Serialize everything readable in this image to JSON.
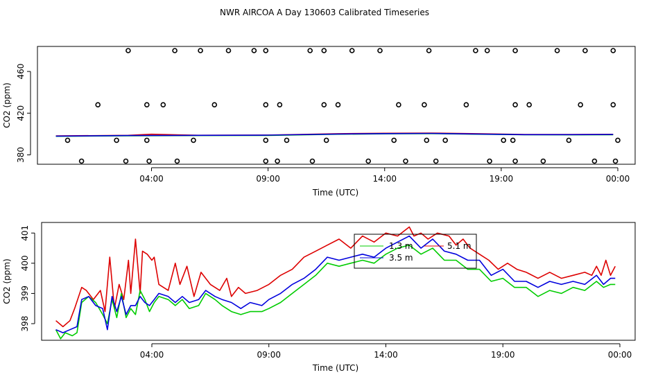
{
  "page_title": "NWR AIRCOA A  Day 130603  Calibrated Timeseries",
  "chart_data": [
    {
      "id": "top",
      "type": "scatter",
      "xlabel": "Time (UTC)",
      "ylabel": "CO2 (ppm)",
      "x_ticks": [
        {
          "t": 4,
          "label": "04:00"
        },
        {
          "t": 9,
          "label": "09:00"
        },
        {
          "t": 14,
          "label": "14:00"
        },
        {
          "t": 19,
          "label": "19:00"
        },
        {
          "t": 24,
          "label": "00:00"
        }
      ],
      "y_ticks": [
        380,
        420,
        460
      ],
      "xlim": [
        -0.9,
        24.9
      ],
      "ylim": [
        371,
        484
      ],
      "calibration_points": {
        "x": [
          3.0,
          6.1,
          5.0,
          7.3,
          8.4,
          8.9,
          10.8,
          11.4,
          12.6,
          13.8,
          15.9,
          17.9,
          18.4,
          19.6,
          21.4,
          22.6,
          23.8,
          1.7,
          3.8,
          4.5,
          6.7,
          8.9,
          9.5,
          11.4,
          12.0,
          14.6,
          15.7,
          17.5,
          19.6,
          20.2,
          22.4,
          23.8,
          1.0,
          2.9,
          3.9,
          5.1,
          8.9,
          9.4,
          10.9,
          13.3,
          14.9,
          16.2,
          18.5,
          19.6,
          20.8,
          23.0,
          23.9,
          0.4,
          2.5,
          3.8,
          5.8,
          8.9,
          9.8,
          11.5,
          14.4,
          15.8,
          16.6,
          19.1,
          19.5,
          21.9,
          24.0
        ],
        "y": [
          480,
          480,
          480,
          480,
          480,
          480,
          480,
          480,
          480,
          480,
          480,
          480,
          480,
          480,
          480,
          480,
          480,
          428,
          428,
          428,
          428,
          428,
          428,
          428,
          428,
          428,
          428,
          428,
          428,
          428,
          428,
          428,
          374,
          374,
          374,
          374,
          374,
          374,
          374,
          374,
          374,
          374,
          374,
          374,
          374,
          374,
          374,
          394,
          394,
          394,
          394,
          394,
          394,
          394,
          394,
          394,
          394,
          394,
          394,
          394,
          394
        ]
      },
      "series": [
        {
          "name": "red",
          "color": "#dd0000",
          "x": [
            -0.1,
            3.0,
            4.0,
            6.0,
            9.0,
            12.0,
            14.0,
            16.0,
            18.0,
            20.0,
            22.0,
            23.8
          ],
          "y": [
            398.2,
            398.7,
            399.8,
            398.8,
            399.0,
            400.3,
            400.7,
            400.9,
            400.3,
            399.5,
            399.5,
            399.7
          ]
        },
        {
          "name": "green",
          "color": "#00cc00",
          "x": [
            -0.1,
            3.0,
            6.0,
            9.0,
            12.0,
            14.0,
            16.0,
            18.0,
            20.0,
            22.0,
            23.8
          ],
          "y": [
            397.8,
            398.3,
            398.5,
            398.6,
            399.8,
            400.2,
            400.4,
            399.8,
            399.3,
            399.2,
            399.3
          ]
        },
        {
          "name": "blue",
          "color": "#0000dd",
          "x": [
            -0.1,
            3.0,
            6.0,
            9.0,
            12.0,
            14.0,
            16.0,
            18.0,
            20.0,
            22.0,
            23.8
          ],
          "y": [
            398.0,
            398.5,
            398.7,
            398.9,
            400.0,
            400.4,
            400.6,
            400.0,
            399.4,
            399.4,
            399.5
          ]
        }
      ]
    },
    {
      "id": "bottom",
      "type": "line",
      "xlabel": "Time (UTC)",
      "ylabel": "CO2 (ppm)",
      "x_ticks": [
        {
          "t": 4,
          "label": "04:00"
        },
        {
          "t": 9,
          "label": "09:00"
        },
        {
          "t": 14,
          "label": "14:00"
        },
        {
          "t": 19,
          "label": "19:00"
        },
        {
          "t": 24,
          "label": "00:00"
        }
      ],
      "y_ticks": [
        398,
        399,
        400,
        401
      ],
      "xlim": [
        -0.9,
        24.9
      ],
      "ylim": [
        397.45,
        401.35
      ],
      "legend": {
        "position": "top-center",
        "entries": [
          {
            "label": "1.3 m",
            "color": "#00cc00"
          },
          {
            "label": "5.1 m",
            "color": "#dd0000"
          },
          {
            "label": "3.5 m",
            "color": "#0000dd"
          }
        ]
      },
      "series": [
        {
          "name": "5.1 m",
          "color": "#dd0000",
          "x": [
            -0.1,
            0.2,
            0.5,
            0.7,
            1.0,
            1.2,
            1.5,
            1.8,
            2.0,
            2.2,
            2.4,
            2.6,
            2.8,
            3.0,
            3.1,
            3.3,
            3.5,
            3.6,
            3.8,
            4.0,
            4.1,
            4.3,
            4.7,
            5.0,
            5.2,
            5.5,
            5.8,
            6.1,
            6.5,
            6.9,
            7.2,
            7.4,
            7.7,
            8.0,
            8.5,
            9.0,
            9.5,
            10.0,
            10.5,
            11.0,
            11.5,
            12.0,
            12.5,
            13.0,
            13.5,
            14.0,
            14.5,
            15.0,
            15.2,
            15.5,
            15.8,
            16.2,
            16.7,
            17.0,
            17.3,
            17.6,
            18.0,
            18.4,
            18.8,
            19.2,
            19.6,
            20.0,
            20.5,
            21.0,
            21.5,
            22.0,
            22.5,
            22.8,
            23.0,
            23.2,
            23.4,
            23.6,
            23.8
          ],
          "y": [
            398.1,
            397.9,
            398.1,
            398.5,
            399.2,
            399.1,
            398.8,
            399.1,
            398.4,
            400.2,
            398.5,
            399.3,
            398.8,
            400.1,
            399.0,
            400.8,
            399.0,
            400.4,
            400.3,
            400.1,
            400.2,
            399.3,
            399.1,
            400.0,
            399.3,
            399.9,
            398.9,
            399.7,
            399.3,
            399.1,
            399.5,
            398.9,
            399.2,
            399.0,
            399.1,
            399.3,
            399.6,
            399.8,
            400.2,
            400.4,
            400.6,
            400.8,
            400.5,
            400.9,
            400.7,
            401.0,
            400.9,
            401.2,
            400.9,
            401.0,
            400.8,
            401.0,
            400.9,
            400.6,
            400.8,
            400.5,
            400.3,
            400.1,
            399.8,
            400.0,
            399.8,
            399.7,
            399.5,
            399.7,
            399.5,
            399.6,
            399.7,
            399.6,
            399.9,
            399.6,
            400.1,
            399.6,
            399.9
          ]
        },
        {
          "name": "1.3 m",
          "color": "#00cc00",
          "x": [
            -0.1,
            0.1,
            0.3,
            0.6,
            0.8,
            1.0,
            1.3,
            1.6,
            1.9,
            2.1,
            2.3,
            2.5,
            2.7,
            2.9,
            3.1,
            3.3,
            3.5,
            3.7,
            3.9,
            4.1,
            4.3,
            4.7,
            5.0,
            5.3,
            5.6,
            6.0,
            6.3,
            6.7,
            7.0,
            7.4,
            7.8,
            8.2,
            8.7,
            9.0,
            9.5,
            10.0,
            10.5,
            11.0,
            11.5,
            12.0,
            12.5,
            13.0,
            13.5,
            14.0,
            14.5,
            15.0,
            15.5,
            16.0,
            16.5,
            17.0,
            17.5,
            18.0,
            18.5,
            19.0,
            19.5,
            20.0,
            20.5,
            21.0,
            21.5,
            22.0,
            22.5,
            23.0,
            23.3,
            23.6,
            23.8
          ],
          "y": [
            397.8,
            397.5,
            397.7,
            397.6,
            397.7,
            398.7,
            398.9,
            398.7,
            398.3,
            398.0,
            398.8,
            398.2,
            399.0,
            398.2,
            398.5,
            398.3,
            399.1,
            398.8,
            398.4,
            398.7,
            398.9,
            398.8,
            398.6,
            398.8,
            398.5,
            398.6,
            399.0,
            398.8,
            398.6,
            398.4,
            398.3,
            398.4,
            398.4,
            398.5,
            398.7,
            399.0,
            399.3,
            399.6,
            400.0,
            399.9,
            400.0,
            400.1,
            400.0,
            400.3,
            400.5,
            400.6,
            400.3,
            400.5,
            400.1,
            400.1,
            399.8,
            399.8,
            399.4,
            399.5,
            399.2,
            399.2,
            398.9,
            399.1,
            399.0,
            399.2,
            399.1,
            399.4,
            399.2,
            399.3,
            399.3
          ]
        },
        {
          "name": "3.5 m",
          "color": "#0000dd",
          "x": [
            -0.1,
            0.2,
            0.5,
            0.8,
            1.0,
            1.3,
            1.6,
            1.9,
            2.1,
            2.3,
            2.5,
            2.7,
            2.9,
            3.1,
            3.3,
            3.5,
            3.7,
            3.9,
            4.1,
            4.3,
            4.7,
            5.0,
            5.3,
            5.6,
            6.0,
            6.3,
            6.7,
            7.0,
            7.4,
            7.8,
            8.2,
            8.7,
            9.0,
            9.5,
            10.0,
            10.5,
            11.0,
            11.5,
            12.0,
            12.5,
            13.0,
            13.5,
            14.0,
            14.5,
            15.0,
            15.5,
            16.0,
            16.5,
            17.0,
            17.5,
            18.0,
            18.5,
            19.0,
            19.5,
            20.0,
            20.5,
            21.0,
            21.5,
            22.0,
            22.5,
            23.0,
            23.3,
            23.6,
            23.8
          ],
          "y": [
            397.8,
            397.7,
            397.8,
            397.9,
            398.8,
            398.9,
            398.6,
            398.5,
            397.8,
            398.9,
            398.4,
            398.9,
            398.3,
            398.6,
            398.6,
            398.9,
            398.7,
            398.6,
            398.8,
            399.0,
            398.9,
            398.7,
            398.9,
            398.7,
            398.8,
            399.1,
            398.9,
            398.8,
            398.7,
            398.5,
            398.7,
            398.6,
            398.8,
            399.0,
            399.3,
            399.5,
            399.8,
            400.2,
            400.1,
            400.2,
            400.3,
            400.2,
            400.5,
            400.7,
            400.9,
            400.5,
            400.8,
            400.4,
            400.3,
            400.1,
            400.1,
            399.6,
            399.8,
            399.4,
            399.4,
            399.2,
            399.4,
            399.3,
            399.4,
            399.3,
            399.6,
            399.3,
            399.5,
            399.5
          ]
        }
      ]
    }
  ]
}
